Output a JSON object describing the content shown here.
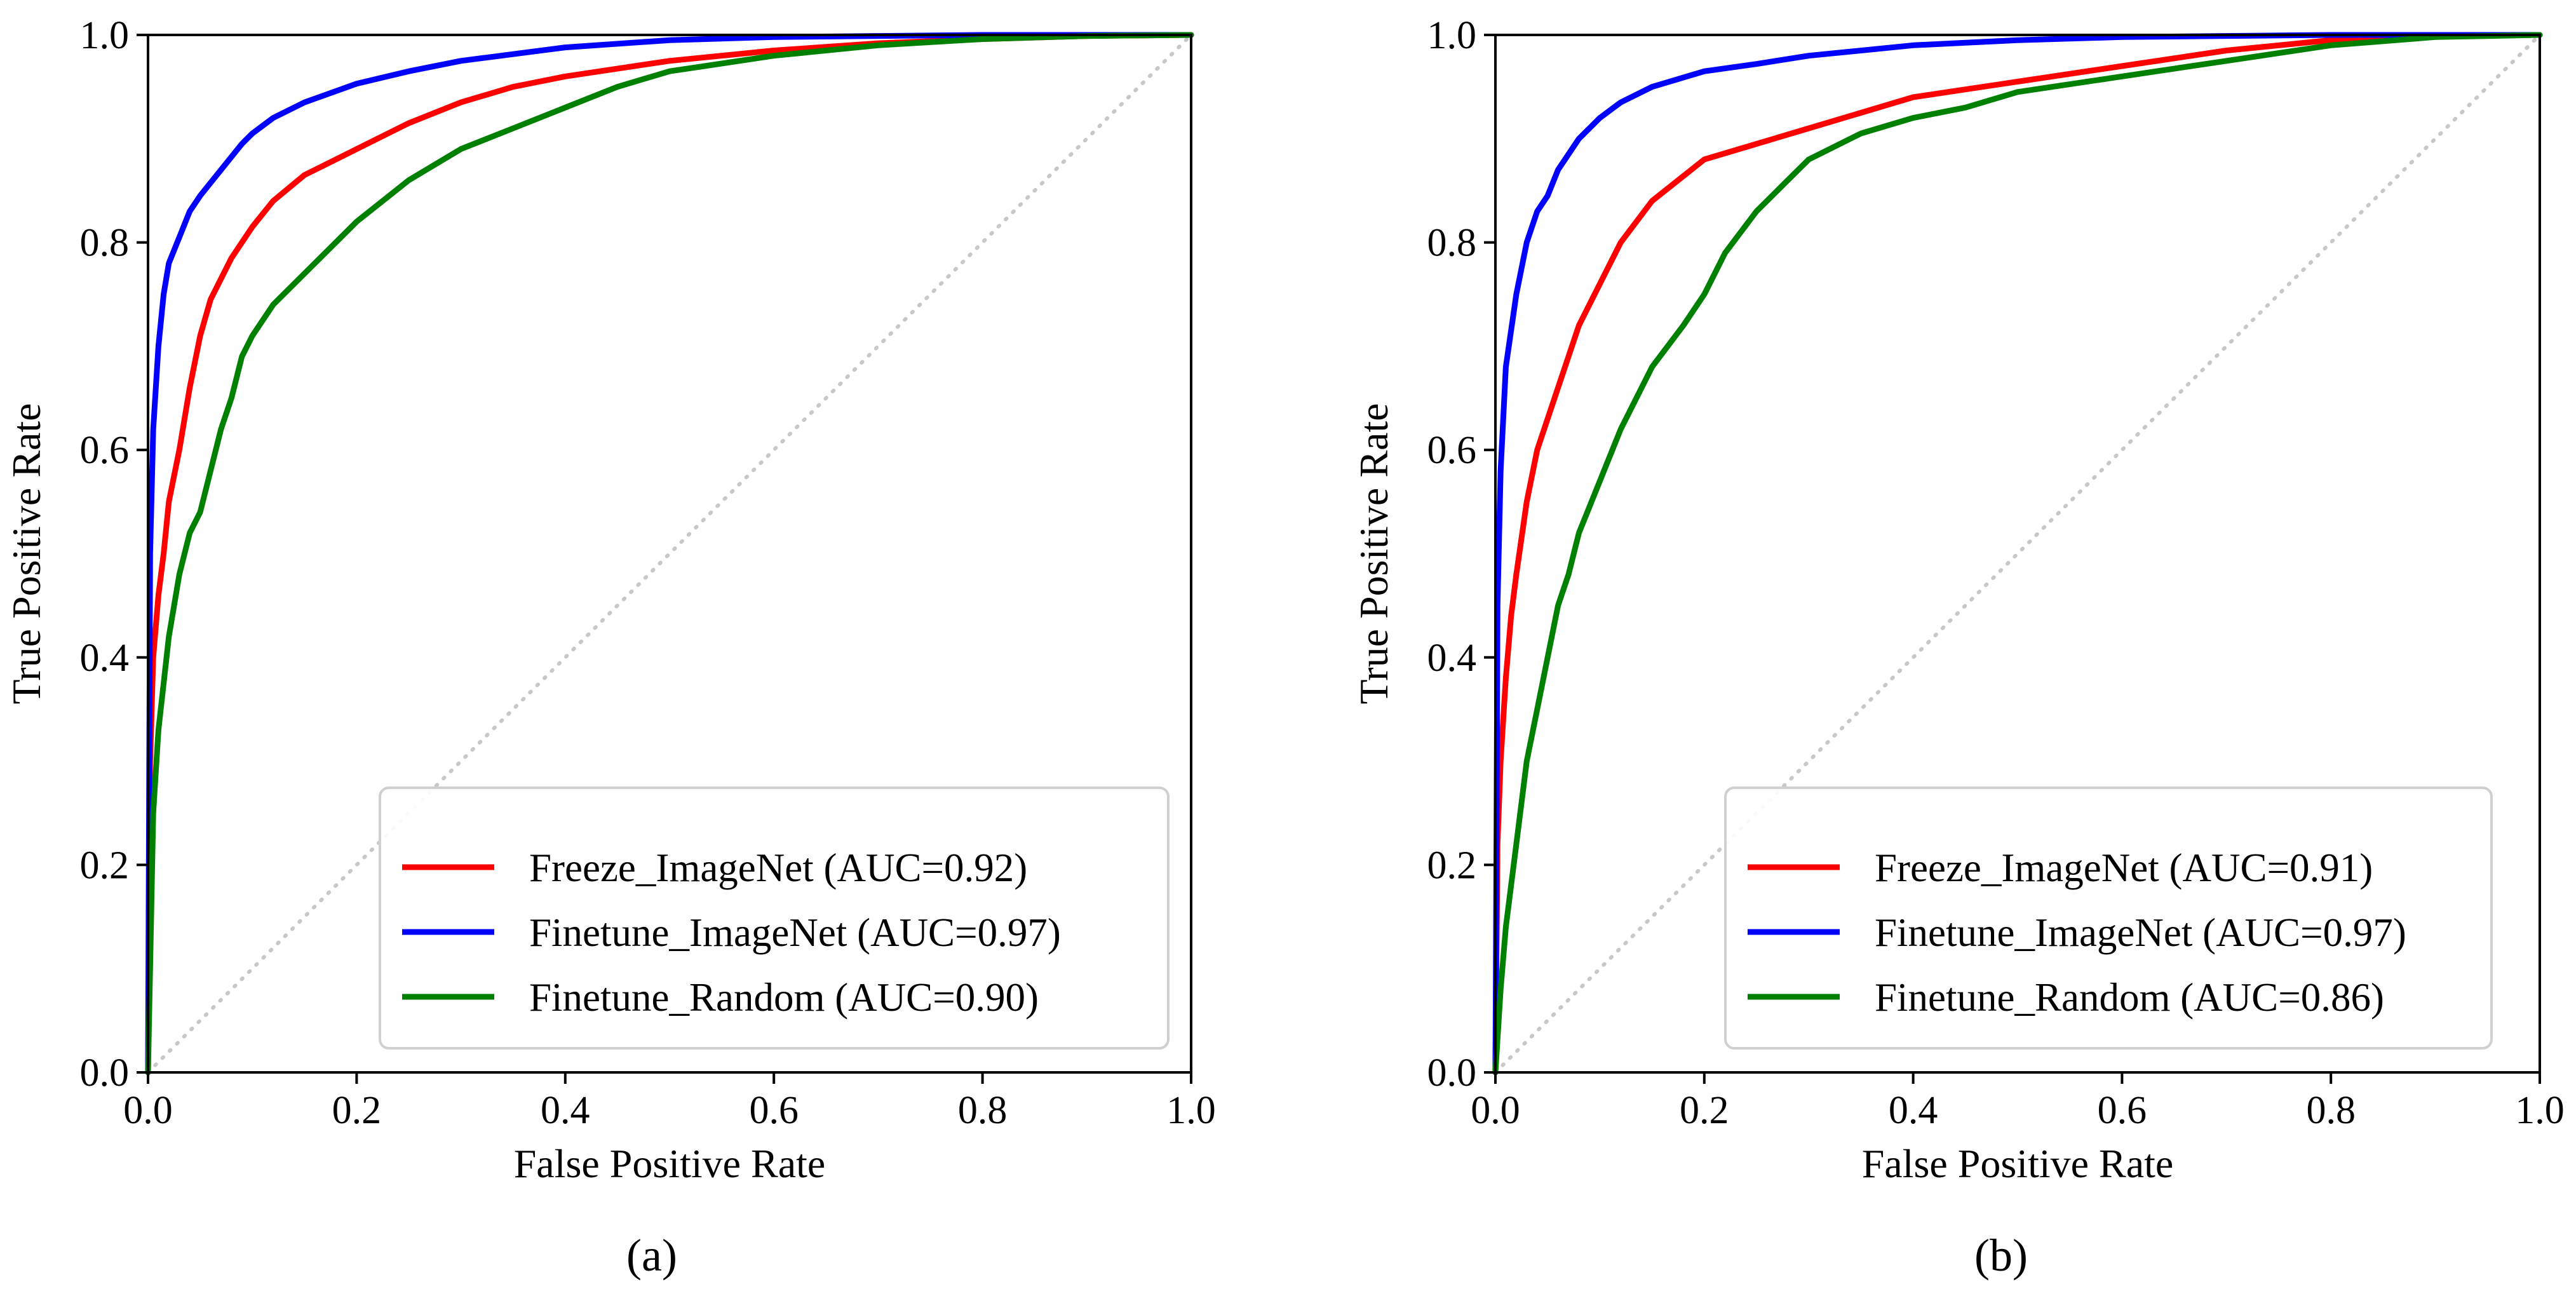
{
  "chart_data": [
    {
      "type": "line",
      "caption": "(a)",
      "xlabel": "False Positive Rate",
      "ylabel": "True Positive Rate",
      "xlim": [
        0,
        1
      ],
      "ylim": [
        0,
        1
      ],
      "xticks": [
        "0.0",
        "0.2",
        "0.4",
        "0.6",
        "0.8",
        "1.0"
      ],
      "yticks": [
        "0.0",
        "0.2",
        "0.4",
        "0.6",
        "0.8",
        "1.0"
      ],
      "legend_position": "lower-right",
      "diagonal": {
        "x": [
          0,
          1
        ],
        "y": [
          0,
          1
        ],
        "style": "dotted",
        "color": "#c8c8c8"
      },
      "series": [
        {
          "name": "Freeze_ImageNet (AUC=0.92)",
          "color": "#ff0000",
          "x": [
            0,
            0.002,
            0.005,
            0.01,
            0.015,
            0.02,
            0.03,
            0.04,
            0.05,
            0.06,
            0.07,
            0.08,
            0.1,
            0.12,
            0.15,
            0.18,
            0.2,
            0.25,
            0.3,
            0.35,
            0.4,
            0.5,
            0.6,
            0.7,
            0.8,
            0.9,
            1.0
          ],
          "y": [
            0,
            0.3,
            0.4,
            0.46,
            0.5,
            0.55,
            0.6,
            0.66,
            0.71,
            0.745,
            0.765,
            0.785,
            0.815,
            0.84,
            0.865,
            0.88,
            0.89,
            0.915,
            0.935,
            0.95,
            0.96,
            0.975,
            0.985,
            0.992,
            0.996,
            0.999,
            1.0
          ]
        },
        {
          "name": "Finetune_ImageNet (AUC=0.97)",
          "color": "#0000ff",
          "x": [
            0,
            0.002,
            0.005,
            0.01,
            0.015,
            0.02,
            0.03,
            0.04,
            0.05,
            0.07,
            0.09,
            0.1,
            0.12,
            0.15,
            0.2,
            0.25,
            0.3,
            0.4,
            0.5,
            0.6,
            0.7,
            0.8,
            1.0
          ],
          "y": [
            0,
            0.5,
            0.62,
            0.7,
            0.75,
            0.78,
            0.805,
            0.83,
            0.845,
            0.87,
            0.895,
            0.905,
            0.92,
            0.935,
            0.953,
            0.965,
            0.975,
            0.988,
            0.995,
            0.998,
            0.999,
            1.0,
            1.0
          ]
        },
        {
          "name": "Finetune_Random (AUC=0.90)",
          "color": "#008000",
          "x": [
            0,
            0.005,
            0.01,
            0.02,
            0.03,
            0.04,
            0.05,
            0.06,
            0.07,
            0.08,
            0.09,
            0.1,
            0.12,
            0.15,
            0.18,
            0.2,
            0.25,
            0.3,
            0.35,
            0.4,
            0.45,
            0.5,
            0.6,
            0.7,
            0.8,
            0.9,
            1.0
          ],
          "y": [
            0,
            0.25,
            0.33,
            0.42,
            0.48,
            0.52,
            0.54,
            0.58,
            0.62,
            0.65,
            0.69,
            0.71,
            0.74,
            0.77,
            0.8,
            0.82,
            0.86,
            0.89,
            0.91,
            0.93,
            0.95,
            0.965,
            0.98,
            0.99,
            0.996,
            0.999,
            1.0
          ]
        }
      ]
    },
    {
      "type": "line",
      "caption": "(b)",
      "xlabel": "False Positive Rate",
      "ylabel": "True Positive Rate",
      "xlim": [
        0,
        1
      ],
      "ylim": [
        0,
        1
      ],
      "xticks": [
        "0.0",
        "0.2",
        "0.4",
        "0.6",
        "0.8",
        "1.0"
      ],
      "yticks": [
        "0.0",
        "0.2",
        "0.4",
        "0.6",
        "0.8",
        "1.0"
      ],
      "legend_position": "lower-right",
      "diagonal": {
        "x": [
          0,
          1
        ],
        "y": [
          0,
          1
        ],
        "style": "dotted",
        "color": "#c8c8c8"
      },
      "series": [
        {
          "name": "Freeze_ImageNet (AUC=0.91)",
          "color": "#ff0000",
          "x": [
            0,
            0.002,
            0.005,
            0.01,
            0.015,
            0.02,
            0.03,
            0.04,
            0.05,
            0.06,
            0.08,
            0.1,
            0.12,
            0.15,
            0.2,
            0.25,
            0.3,
            0.35,
            0.4,
            0.5,
            0.6,
            0.7,
            0.8,
            0.9,
            1.0
          ],
          "y": [
            0,
            0.22,
            0.3,
            0.38,
            0.44,
            0.48,
            0.55,
            0.6,
            0.63,
            0.66,
            0.72,
            0.76,
            0.8,
            0.84,
            0.88,
            0.895,
            0.91,
            0.925,
            0.94,
            0.955,
            0.97,
            0.985,
            0.995,
            0.999,
            1.0
          ]
        },
        {
          "name": "Finetune_ImageNet (AUC=0.97)",
          "color": "#0000ff",
          "x": [
            0,
            0.002,
            0.005,
            0.01,
            0.02,
            0.03,
            0.04,
            0.05,
            0.06,
            0.08,
            0.1,
            0.12,
            0.15,
            0.2,
            0.25,
            0.3,
            0.4,
            0.5,
            0.6,
            0.7,
            0.8,
            1.0
          ],
          "y": [
            0,
            0.45,
            0.58,
            0.68,
            0.75,
            0.8,
            0.83,
            0.845,
            0.87,
            0.9,
            0.92,
            0.935,
            0.95,
            0.965,
            0.972,
            0.98,
            0.99,
            0.995,
            0.998,
            0.999,
            1.0,
            1.0
          ]
        },
        {
          "name": "Finetune_Random (AUC=0.86)",
          "color": "#008000",
          "x": [
            0,
            0.005,
            0.01,
            0.02,
            0.03,
            0.04,
            0.05,
            0.06,
            0.07,
            0.08,
            0.1,
            0.12,
            0.15,
            0.18,
            0.2,
            0.22,
            0.25,
            0.28,
            0.3,
            0.35,
            0.4,
            0.45,
            0.5,
            0.6,
            0.7,
            0.8,
            0.9,
            1.0
          ],
          "y": [
            0,
            0.08,
            0.14,
            0.22,
            0.3,
            0.35,
            0.4,
            0.45,
            0.48,
            0.52,
            0.57,
            0.62,
            0.68,
            0.72,
            0.75,
            0.79,
            0.83,
            0.86,
            0.88,
            0.905,
            0.92,
            0.93,
            0.945,
            0.96,
            0.975,
            0.99,
            0.998,
            1.0
          ]
        }
      ]
    }
  ]
}
